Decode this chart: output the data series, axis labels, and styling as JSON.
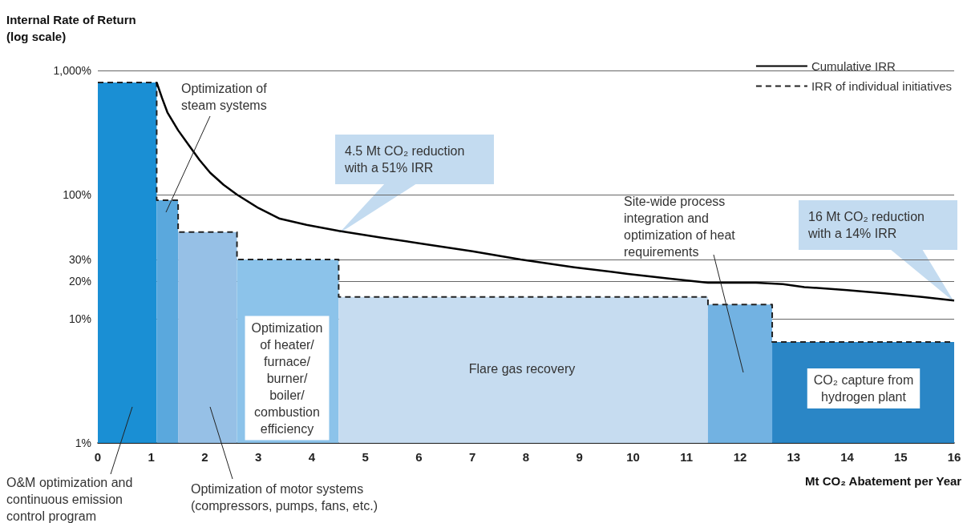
{
  "chart_data": {
    "type": "histogram",
    "ylabel": "Internal Rate of Return\n(log scale)",
    "xlabel": "Mt CO₂ Abatement per Year",
    "log": "y",
    "grid": "y",
    "legend": "top right",
    "xlim": [
      0,
      16
    ],
    "xticks": [
      0,
      1,
      2,
      3,
      4,
      5,
      6,
      7,
      8,
      9,
      10,
      11,
      12,
      13,
      14,
      15,
      16
    ],
    "ylim": [
      1,
      1000
    ],
    "yticks": [
      {
        "value": 1,
        "label": "1%"
      },
      {
        "value": 10,
        "label": "10%"
      },
      {
        "value": 20,
        "label": "20%"
      },
      {
        "value": 30,
        "label": "30%"
      },
      {
        "value": 100,
        "label": "100%"
      },
      {
        "value": 1000,
        "label": "1,000%"
      }
    ],
    "series": [
      {
        "bins": [
          0,
          1.1,
          1.5,
          2.6,
          4.5,
          11.4,
          12.6,
          16
        ],
        "values": [
          800,
          90,
          50,
          30,
          15,
          13,
          6.5
        ],
        "colors": [
          "#1a8fd4",
          "#5aa8dd",
          "#96c0e6",
          "#8cc3ea",
          "#c6dcf0",
          "#72b2e2",
          "#2a86c6"
        ]
      },
      {
        "type": "line",
        "name": "Cumulative IRR",
        "color": "#000000",
        "x": [
          1.1,
          1.2,
          1.3,
          1.5,
          1.7,
          1.9,
          2.1,
          2.35,
          2.6,
          3.0,
          3.4,
          3.9,
          4.5,
          5.3,
          6.1,
          7.0,
          7.9,
          8.9,
          9.9,
          10.7,
          11.4,
          11.8,
          12.3,
          12.8,
          13.2,
          14.0,
          14.7,
          15.4,
          16
        ],
        "values": [
          800,
          600,
          460,
          330,
          250,
          190,
          150,
          120,
          100,
          78,
          64,
          57,
          51,
          45,
          40,
          35,
          30,
          26,
          23,
          21,
          19.5,
          19.5,
          19.5,
          19,
          18,
          17,
          16,
          15,
          14
        ]
      },
      {
        "type": "step",
        "name": "IRR of individual initiatives",
        "color": "#222222",
        "line_style": "dashed",
        "x": [
          0,
          1.1,
          1.5,
          2.6,
          4.5,
          11.4,
          12.6,
          16
        ],
        "values": [
          800,
          90,
          50,
          30,
          15,
          13,
          6.5,
          6.5
        ]
      }
    ],
    "annotations": [
      "Optimization of\nsteam systems",
      "O&M optimization and\ncontinuous emission\ncontrol program",
      "Optimization of motor systems\n(compressors, pumps, fans, etc.)",
      "Optimization\nof heater/\nfurnace/\nburner/\nboiler/\ncombustion\nefficiency",
      "Flare gas recovery",
      "Site-wide process\nintegration and\noptimization of heat\nrequirements",
      "CO₂ capture from\nhydrogen plant",
      "4.5 Mt CO₂ reduction\nwith a 51% IRR",
      "16 Mt CO₂ reduction\nwith a 14% IRR"
    ]
  }
}
